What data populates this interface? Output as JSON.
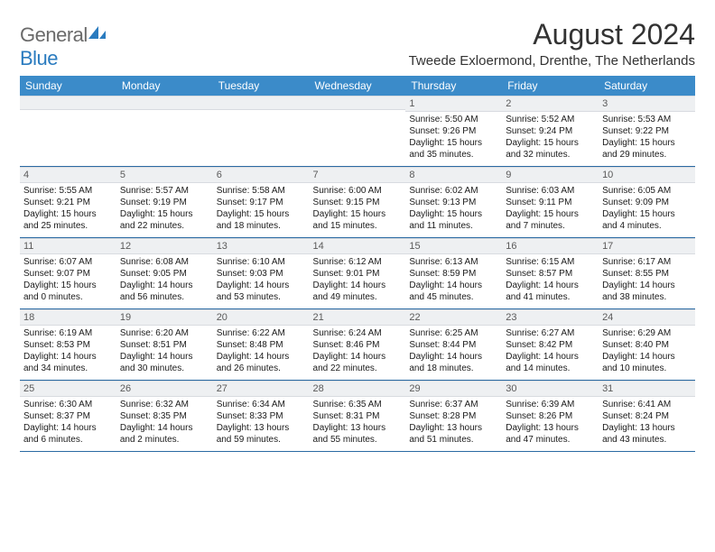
{
  "logo": {
    "text_part1": "General",
    "text_part2": "Blue",
    "icon_fill": "#2a7bbf"
  },
  "header": {
    "month_title": "August 2024",
    "location": "Tweede Exloermond, Drenthe, The Netherlands"
  },
  "colors": {
    "header_row_bg": "#3b8bc9",
    "header_row_text": "#ffffff",
    "daynum_bg": "#eef0f2",
    "daynum_text": "#5a5a5a",
    "day_border": "#2a6aa3",
    "body_text": "#1a1a1a"
  },
  "daynames": [
    "Sunday",
    "Monday",
    "Tuesday",
    "Wednesday",
    "Thursday",
    "Friday",
    "Saturday"
  ],
  "weeks": [
    [
      null,
      null,
      null,
      null,
      {
        "n": "1",
        "sr": "Sunrise: 5:50 AM",
        "ss": "Sunset: 9:26 PM",
        "dl1": "Daylight: 15 hours",
        "dl2": "and 35 minutes."
      },
      {
        "n": "2",
        "sr": "Sunrise: 5:52 AM",
        "ss": "Sunset: 9:24 PM",
        "dl1": "Daylight: 15 hours",
        "dl2": "and 32 minutes."
      },
      {
        "n": "3",
        "sr": "Sunrise: 5:53 AM",
        "ss": "Sunset: 9:22 PM",
        "dl1": "Daylight: 15 hours",
        "dl2": "and 29 minutes."
      }
    ],
    [
      {
        "n": "4",
        "sr": "Sunrise: 5:55 AM",
        "ss": "Sunset: 9:21 PM",
        "dl1": "Daylight: 15 hours",
        "dl2": "and 25 minutes."
      },
      {
        "n": "5",
        "sr": "Sunrise: 5:57 AM",
        "ss": "Sunset: 9:19 PM",
        "dl1": "Daylight: 15 hours",
        "dl2": "and 22 minutes."
      },
      {
        "n": "6",
        "sr": "Sunrise: 5:58 AM",
        "ss": "Sunset: 9:17 PM",
        "dl1": "Daylight: 15 hours",
        "dl2": "and 18 minutes."
      },
      {
        "n": "7",
        "sr": "Sunrise: 6:00 AM",
        "ss": "Sunset: 9:15 PM",
        "dl1": "Daylight: 15 hours",
        "dl2": "and 15 minutes."
      },
      {
        "n": "8",
        "sr": "Sunrise: 6:02 AM",
        "ss": "Sunset: 9:13 PM",
        "dl1": "Daylight: 15 hours",
        "dl2": "and 11 minutes."
      },
      {
        "n": "9",
        "sr": "Sunrise: 6:03 AM",
        "ss": "Sunset: 9:11 PM",
        "dl1": "Daylight: 15 hours",
        "dl2": "and 7 minutes."
      },
      {
        "n": "10",
        "sr": "Sunrise: 6:05 AM",
        "ss": "Sunset: 9:09 PM",
        "dl1": "Daylight: 15 hours",
        "dl2": "and 4 minutes."
      }
    ],
    [
      {
        "n": "11",
        "sr": "Sunrise: 6:07 AM",
        "ss": "Sunset: 9:07 PM",
        "dl1": "Daylight: 15 hours",
        "dl2": "and 0 minutes."
      },
      {
        "n": "12",
        "sr": "Sunrise: 6:08 AM",
        "ss": "Sunset: 9:05 PM",
        "dl1": "Daylight: 14 hours",
        "dl2": "and 56 minutes."
      },
      {
        "n": "13",
        "sr": "Sunrise: 6:10 AM",
        "ss": "Sunset: 9:03 PM",
        "dl1": "Daylight: 14 hours",
        "dl2": "and 53 minutes."
      },
      {
        "n": "14",
        "sr": "Sunrise: 6:12 AM",
        "ss": "Sunset: 9:01 PM",
        "dl1": "Daylight: 14 hours",
        "dl2": "and 49 minutes."
      },
      {
        "n": "15",
        "sr": "Sunrise: 6:13 AM",
        "ss": "Sunset: 8:59 PM",
        "dl1": "Daylight: 14 hours",
        "dl2": "and 45 minutes."
      },
      {
        "n": "16",
        "sr": "Sunrise: 6:15 AM",
        "ss": "Sunset: 8:57 PM",
        "dl1": "Daylight: 14 hours",
        "dl2": "and 41 minutes."
      },
      {
        "n": "17",
        "sr": "Sunrise: 6:17 AM",
        "ss": "Sunset: 8:55 PM",
        "dl1": "Daylight: 14 hours",
        "dl2": "and 38 minutes."
      }
    ],
    [
      {
        "n": "18",
        "sr": "Sunrise: 6:19 AM",
        "ss": "Sunset: 8:53 PM",
        "dl1": "Daylight: 14 hours",
        "dl2": "and 34 minutes."
      },
      {
        "n": "19",
        "sr": "Sunrise: 6:20 AM",
        "ss": "Sunset: 8:51 PM",
        "dl1": "Daylight: 14 hours",
        "dl2": "and 30 minutes."
      },
      {
        "n": "20",
        "sr": "Sunrise: 6:22 AM",
        "ss": "Sunset: 8:48 PM",
        "dl1": "Daylight: 14 hours",
        "dl2": "and 26 minutes."
      },
      {
        "n": "21",
        "sr": "Sunrise: 6:24 AM",
        "ss": "Sunset: 8:46 PM",
        "dl1": "Daylight: 14 hours",
        "dl2": "and 22 minutes."
      },
      {
        "n": "22",
        "sr": "Sunrise: 6:25 AM",
        "ss": "Sunset: 8:44 PM",
        "dl1": "Daylight: 14 hours",
        "dl2": "and 18 minutes."
      },
      {
        "n": "23",
        "sr": "Sunrise: 6:27 AM",
        "ss": "Sunset: 8:42 PM",
        "dl1": "Daylight: 14 hours",
        "dl2": "and 14 minutes."
      },
      {
        "n": "24",
        "sr": "Sunrise: 6:29 AM",
        "ss": "Sunset: 8:40 PM",
        "dl1": "Daylight: 14 hours",
        "dl2": "and 10 minutes."
      }
    ],
    [
      {
        "n": "25",
        "sr": "Sunrise: 6:30 AM",
        "ss": "Sunset: 8:37 PM",
        "dl1": "Daylight: 14 hours",
        "dl2": "and 6 minutes."
      },
      {
        "n": "26",
        "sr": "Sunrise: 6:32 AM",
        "ss": "Sunset: 8:35 PM",
        "dl1": "Daylight: 14 hours",
        "dl2": "and 2 minutes."
      },
      {
        "n": "27",
        "sr": "Sunrise: 6:34 AM",
        "ss": "Sunset: 8:33 PM",
        "dl1": "Daylight: 13 hours",
        "dl2": "and 59 minutes."
      },
      {
        "n": "28",
        "sr": "Sunrise: 6:35 AM",
        "ss": "Sunset: 8:31 PM",
        "dl1": "Daylight: 13 hours",
        "dl2": "and 55 minutes."
      },
      {
        "n": "29",
        "sr": "Sunrise: 6:37 AM",
        "ss": "Sunset: 8:28 PM",
        "dl1": "Daylight: 13 hours",
        "dl2": "and 51 minutes."
      },
      {
        "n": "30",
        "sr": "Sunrise: 6:39 AM",
        "ss": "Sunset: 8:26 PM",
        "dl1": "Daylight: 13 hours",
        "dl2": "and 47 minutes."
      },
      {
        "n": "31",
        "sr": "Sunrise: 6:41 AM",
        "ss": "Sunset: 8:24 PM",
        "dl1": "Daylight: 13 hours",
        "dl2": "and 43 minutes."
      }
    ]
  ]
}
